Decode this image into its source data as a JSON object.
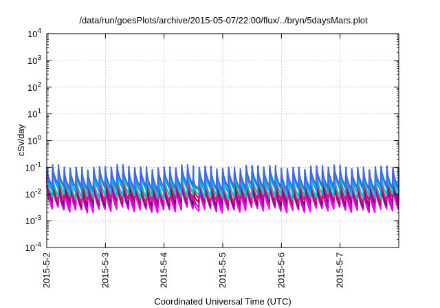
{
  "chart_data": {
    "type": "line",
    "title": "/data/run/goesPlots/archive/2015-05-07/22:00/flux/../bryn/5daysMars.plot",
    "xlabel": "Coordinated Universal Time (UTC)",
    "ylabel": "cSv/day",
    "yscale": "log",
    "ylim": [
      0.0001,
      10000
    ],
    "y_tick_labels": [
      {
        "base": "10",
        "exp": "-4"
      },
      {
        "base": "10",
        "exp": "-3"
      },
      {
        "base": "10",
        "exp": "-2"
      },
      {
        "base": "10",
        "exp": "-1"
      },
      {
        "base": "10",
        "exp": "0"
      },
      {
        "base": "10",
        "exp": "1"
      },
      {
        "base": "10",
        "exp": "2"
      },
      {
        "base": "10",
        "exp": "3"
      },
      {
        "base": "10",
        "exp": "4"
      }
    ],
    "x_tick_labels": [
      "2015-5-2",
      "2015-5-3",
      "2015-5-4",
      "2015-5-5",
      "2015-5-6",
      "2015-5-7"
    ],
    "xlim": [
      "2015-05-02",
      "2015-05-08"
    ],
    "grid": true,
    "pattern": {
      "cycles_per_day": 10,
      "description": "sawtooth modulation repeating ~10 times per day"
    },
    "series": [
      {
        "color": "#ff00ff",
        "peak": 0.02,
        "trough": 0.0025
      },
      {
        "color": "#cc00cc",
        "peak": 0.025,
        "trough": 0.0032
      },
      {
        "color": "#800080",
        "peak": 0.03,
        "trough": 0.0042
      },
      {
        "color": "#cc2255",
        "peak": 0.045,
        "trough": 0.0055
      },
      {
        "color": "#00c8c8",
        "peak": 0.06,
        "trough": 0.008
      },
      {
        "color": "#1e90ff",
        "peak": 0.08,
        "trough": 0.014
      },
      {
        "color": "#4169e1",
        "peak": 0.095,
        "trough": 0.018
      }
    ]
  }
}
